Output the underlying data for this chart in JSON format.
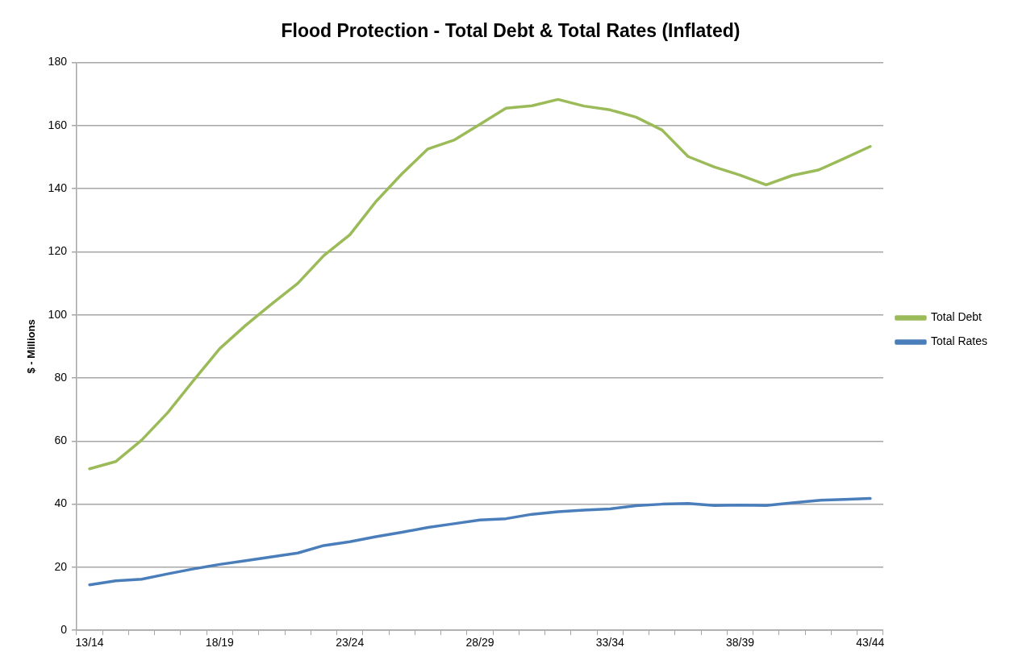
{
  "chart_data": {
    "type": "line",
    "title": "Flood Protection - Total Debt & Total Rates (Inflated)",
    "ylabel": "$ - Millions",
    "categories": [
      "13/14",
      null,
      null,
      null,
      null,
      "18/19",
      null,
      null,
      null,
      null,
      "23/24",
      null,
      null,
      null,
      null,
      "28/29",
      null,
      null,
      null,
      null,
      "33/34",
      null,
      null,
      null,
      null,
      "38/39",
      null,
      null,
      null,
      null,
      "43/44"
    ],
    "series": [
      {
        "name": "Total Debt",
        "color": "#9bbb59",
        "values": [
          51.2,
          53.5,
          60.3,
          69.0,
          79.3,
          89.3,
          96.7,
          103.5,
          110.0,
          118.8,
          125.4,
          135.9,
          144.7,
          152.6,
          155.4,
          160.4,
          165.5,
          166.3,
          168.3,
          166.2,
          165.0,
          162.7,
          158.6,
          150.2,
          146.9,
          144.3,
          141.2,
          144.2,
          145.9,
          149.6,
          153.4
        ]
      },
      {
        "name": "Total Rates",
        "color": "#4a7ebb",
        "values": [
          14.4,
          15.7,
          16.2,
          17.9,
          19.5,
          20.9,
          22.1,
          23.3,
          24.5,
          26.9,
          28.1,
          29.7,
          31.1,
          32.6,
          33.8,
          35.0,
          35.4,
          36.8,
          37.6,
          38.1,
          38.5,
          39.5,
          40.0,
          40.2,
          39.6,
          39.7,
          39.6,
          40.4,
          41.2,
          41.5,
          41.8
        ]
      }
    ],
    "ylim": [
      0,
      180
    ],
    "yticks": [
      0,
      20,
      40,
      60,
      80,
      100,
      120,
      140,
      160,
      180
    ],
    "grid": "y",
    "legend": "right",
    "marker": "none",
    "line_style": "solid"
  }
}
